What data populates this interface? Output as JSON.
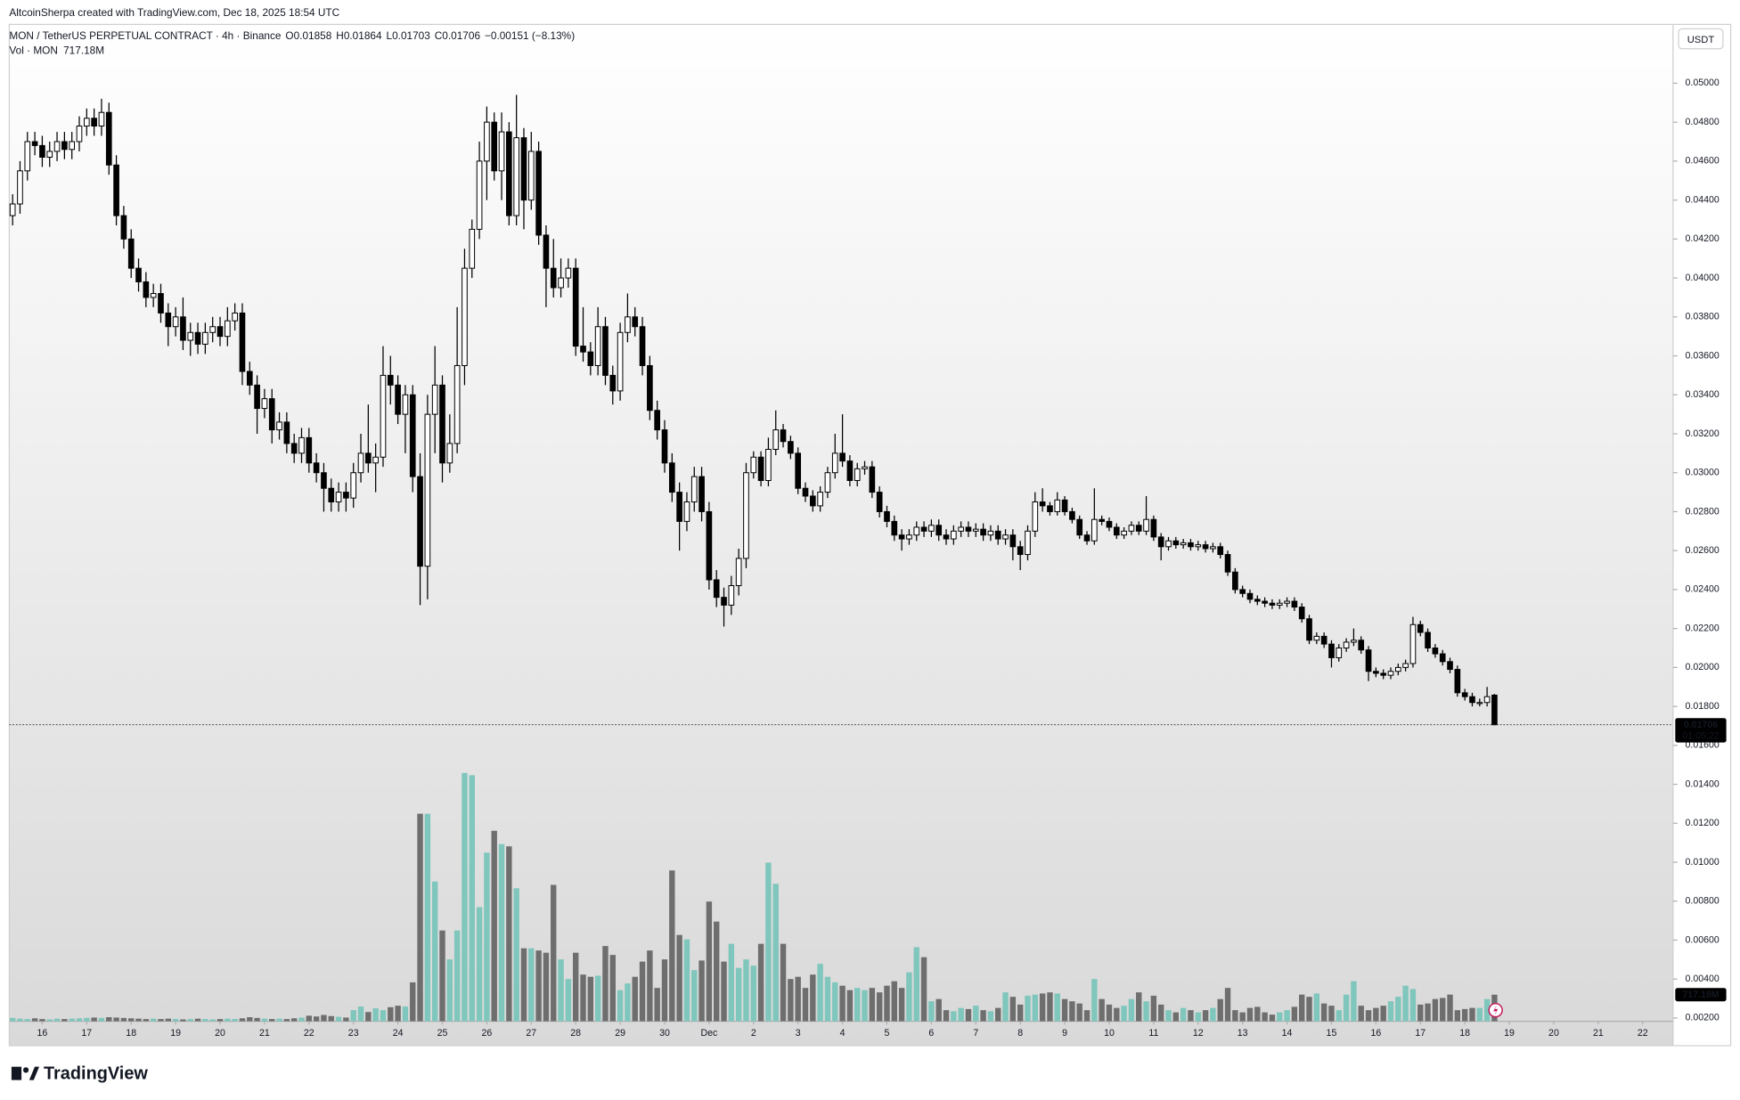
{
  "chart_data": {
    "type": "candlestick",
    "attribution": "AltcoinSherpa created with TradingView.com, Dec 18, 2025 18:54 UTC",
    "title": "MON / TetherUS PERPETUAL CONTRACT · 4h · Binance",
    "ohlc_letters": [
      "O",
      "H",
      "L",
      "C"
    ],
    "change": "−0.00151 (−8.13%)",
    "currency": "USDT",
    "countdown": "01:05:22",
    "logo": "TradingView",
    "up_color": "#ffffff",
    "down_color": "#000000",
    "open": [
      0.0432,
      0.0438,
      0.0455,
      0.047,
      0.0468,
      0.0462,
      0.0465,
      0.047,
      0.0466,
      0.047,
      0.0478,
      0.0482,
      0.0478,
      0.0485,
      0.0458,
      0.0432,
      0.042,
      0.0405,
      0.0398,
      0.039,
      0.0392,
      0.0382,
      0.0375,
      0.038,
      0.0368,
      0.0372,
      0.0366,
      0.0372,
      0.0375,
      0.037,
      0.0378,
      0.0382,
      0.0352,
      0.0345,
      0.0333,
      0.0338,
      0.0322,
      0.0326,
      0.0315,
      0.031,
      0.0318,
      0.0305,
      0.03,
      0.0292,
      0.0285,
      0.029,
      0.0287,
      0.03,
      0.031,
      0.0305,
      0.0308,
      0.035,
      0.0345,
      0.033,
      0.034,
      0.0298,
      0.0252,
      0.033,
      0.0345,
      0.0305,
      0.0315,
      0.0355,
      0.0405,
      0.0425,
      0.046,
      0.048,
      0.0455,
      0.0475,
      0.0432,
      0.0472,
      0.044,
      0.0465,
      0.0422,
      0.0405,
      0.0395,
      0.04,
      0.0405,
      0.0365,
      0.0362,
      0.0355,
      0.0375,
      0.035,
      0.0342,
      0.0372,
      0.038,
      0.0375,
      0.0355,
      0.0332,
      0.0322,
      0.0305,
      0.029,
      0.0275,
      0.0285,
      0.0298,
      0.028,
      0.0245,
      0.0236,
      0.0232,
      0.0242,
      0.0256,
      0.03,
      0.0308,
      0.0296,
      0.0312,
      0.0322,
      0.0316,
      0.031,
      0.0292,
      0.0288,
      0.0283,
      0.029,
      0.03,
      0.031,
      0.0306,
      0.0296,
      0.0302,
      0.0303,
      0.029,
      0.028,
      0.0275,
      0.0268,
      0.0266,
      0.0268,
      0.0272,
      0.027,
      0.0273,
      0.0268,
      0.0266,
      0.027,
      0.0272,
      0.027,
      0.0271,
      0.0268,
      0.027,
      0.0266,
      0.0268,
      0.0262,
      0.0258,
      0.027,
      0.0285,
      0.0283,
      0.028,
      0.0286,
      0.028,
      0.0276,
      0.0268,
      0.0265,
      0.0276,
      0.0275,
      0.0272,
      0.0268,
      0.027,
      0.0273,
      0.027,
      0.0276,
      0.0267,
      0.0262,
      0.0265,
      0.0263,
      0.0264,
      0.0262,
      0.0263,
      0.0261,
      0.0262,
      0.0258,
      0.0249,
      0.024,
      0.0238,
      0.0235,
      0.0234,
      0.0233,
      0.0232,
      0.0233,
      0.0234,
      0.0231,
      0.0225,
      0.0214,
      0.0216,
      0.0212,
      0.0205,
      0.021,
      0.0213,
      0.0214,
      0.0209,
      0.0198,
      0.0197,
      0.0196,
      0.0198,
      0.02,
      0.0202,
      0.0222,
      0.0218,
      0.021,
      0.0207,
      0.0203,
      0.0199,
      0.0187,
      0.0185,
      0.0182,
      0.0182,
      0.01858
    ],
    "high": [
      0.0443,
      0.046,
      0.0475,
      0.0475,
      0.0473,
      0.047,
      0.0475,
      0.0475,
      0.0475,
      0.0483,
      0.0487,
      0.0487,
      0.0492,
      0.049,
      0.0463,
      0.0437,
      0.0425,
      0.041,
      0.0403,
      0.0397,
      0.0397,
      0.0387,
      0.0385,
      0.039,
      0.0377,
      0.0377,
      0.0377,
      0.038,
      0.038,
      0.0385,
      0.0387,
      0.0387,
      0.0357,
      0.035,
      0.0343,
      0.0343,
      0.0331,
      0.0331,
      0.032,
      0.0323,
      0.0323,
      0.031,
      0.0305,
      0.0297,
      0.0295,
      0.0295,
      0.0305,
      0.032,
      0.0335,
      0.0315,
      0.0365,
      0.036,
      0.035,
      0.0345,
      0.0345,
      0.031,
      0.034,
      0.0365,
      0.035,
      0.033,
      0.0385,
      0.0415,
      0.043,
      0.047,
      0.0488,
      0.0485,
      0.0485,
      0.048,
      0.0494,
      0.0477,
      0.0475,
      0.047,
      0.0427,
      0.042,
      0.041,
      0.041,
      0.041,
      0.0385,
      0.0367,
      0.0385,
      0.038,
      0.0355,
      0.0377,
      0.0392,
      0.0385,
      0.038,
      0.036,
      0.0337,
      0.0327,
      0.031,
      0.0295,
      0.029,
      0.0303,
      0.0303,
      0.0285,
      0.025,
      0.0241,
      0.0247,
      0.0261,
      0.0305,
      0.0311,
      0.0311,
      0.0318,
      0.0332,
      0.0325,
      0.0319,
      0.0313,
      0.0295,
      0.0291,
      0.0293,
      0.0303,
      0.032,
      0.033,
      0.0309,
      0.0305,
      0.0306,
      0.0306,
      0.0293,
      0.0283,
      0.0278,
      0.0271,
      0.0271,
      0.0275,
      0.0275,
      0.0276,
      0.0276,
      0.0271,
      0.0273,
      0.0275,
      0.0275,
      0.0274,
      0.0274,
      0.0273,
      0.0273,
      0.0271,
      0.0271,
      0.0265,
      0.0273,
      0.029,
      0.0292,
      0.0285,
      0.029,
      0.0288,
      0.0282,
      0.0278,
      0.027,
      0.0292,
      0.0278,
      0.0277,
      0.0274,
      0.0272,
      0.0275,
      0.0275,
      0.0288,
      0.0278,
      0.0269,
      0.0267,
      0.0267,
      0.0266,
      0.0266,
      0.0265,
      0.0265,
      0.0264,
      0.0264,
      0.026,
      0.0251,
      0.0242,
      0.024,
      0.0237,
      0.0236,
      0.0235,
      0.0235,
      0.0236,
      0.0236,
      0.0233,
      0.0227,
      0.0218,
      0.0218,
      0.0214,
      0.0212,
      0.0215,
      0.022,
      0.0216,
      0.0211,
      0.02,
      0.0199,
      0.02,
      0.0202,
      0.0204,
      0.0226,
      0.0224,
      0.022,
      0.0212,
      0.0209,
      0.0205,
      0.0201,
      0.0189,
      0.0187,
      0.0184,
      0.019,
      0.01864
    ],
    "low": [
      0.0427,
      0.0433,
      0.045,
      0.0463,
      0.0457,
      0.0457,
      0.046,
      0.0461,
      0.0461,
      0.0465,
      0.0473,
      0.0473,
      0.0473,
      0.0453,
      0.0427,
      0.0415,
      0.04,
      0.0393,
      0.0385,
      0.0385,
      0.0377,
      0.0365,
      0.037,
      0.0363,
      0.036,
      0.0361,
      0.0361,
      0.0367,
      0.0365,
      0.0365,
      0.0373,
      0.0345,
      0.034,
      0.032,
      0.0328,
      0.0315,
      0.0317,
      0.031,
      0.0305,
      0.0305,
      0.03,
      0.0295,
      0.028,
      0.028,
      0.028,
      0.028,
      0.0282,
      0.0295,
      0.03,
      0.029,
      0.0303,
      0.0335,
      0.0325,
      0.031,
      0.029,
      0.0232,
      0.0235,
      0.031,
      0.0295,
      0.03,
      0.031,
      0.0345,
      0.04,
      0.042,
      0.044,
      0.045,
      0.044,
      0.0427,
      0.0427,
      0.0425,
      0.0435,
      0.0417,
      0.0385,
      0.039,
      0.039,
      0.0395,
      0.036,
      0.0357,
      0.035,
      0.035,
      0.0345,
      0.0335,
      0.0337,
      0.0367,
      0.037,
      0.035,
      0.0327,
      0.0317,
      0.03,
      0.0285,
      0.026,
      0.027,
      0.028,
      0.0275,
      0.024,
      0.0231,
      0.0221,
      0.0227,
      0.0237,
      0.0251,
      0.0297,
      0.0293,
      0.0293,
      0.0309,
      0.0313,
      0.0307,
      0.0289,
      0.0285,
      0.028,
      0.028,
      0.0287,
      0.0297,
      0.0303,
      0.0293,
      0.0293,
      0.0299,
      0.0287,
      0.0277,
      0.0272,
      0.0265,
      0.026,
      0.0263,
      0.0265,
      0.0267,
      0.0267,
      0.0265,
      0.0263,
      0.0263,
      0.0267,
      0.0267,
      0.0267,
      0.0265,
      0.0265,
      0.0263,
      0.0263,
      0.0255,
      0.025,
      0.0255,
      0.0267,
      0.028,
      0.0278,
      0.0278,
      0.0278,
      0.0274,
      0.0266,
      0.0263,
      0.0263,
      0.0273,
      0.027,
      0.0266,
      0.0266,
      0.0268,
      0.0268,
      0.0268,
      0.0265,
      0.0255,
      0.026,
      0.0261,
      0.0261,
      0.026,
      0.026,
      0.0259,
      0.0259,
      0.0256,
      0.0247,
      0.0238,
      0.0236,
      0.0233,
      0.0232,
      0.0231,
      0.023,
      0.023,
      0.0231,
      0.0229,
      0.0223,
      0.0212,
      0.0212,
      0.021,
      0.02,
      0.0203,
      0.0208,
      0.0211,
      0.0207,
      0.0193,
      0.0195,
      0.0194,
      0.0194,
      0.0196,
      0.0198,
      0.02,
      0.0216,
      0.0208,
      0.0205,
      0.0201,
      0.0197,
      0.0185,
      0.0183,
      0.018,
      0.018,
      0.018,
      0.01703
    ],
    "close": [
      0.0438,
      0.0455,
      0.047,
      0.0468,
      0.0462,
      0.0465,
      0.047,
      0.0466,
      0.047,
      0.0478,
      0.0482,
      0.0478,
      0.0485,
      0.0458,
      0.0432,
      0.042,
      0.0405,
      0.0398,
      0.039,
      0.0392,
      0.0382,
      0.0375,
      0.038,
      0.0368,
      0.0372,
      0.0366,
      0.0372,
      0.0375,
      0.037,
      0.0378,
      0.0382,
      0.0352,
      0.0345,
      0.0333,
      0.0338,
      0.0322,
      0.0326,
      0.0315,
      0.031,
      0.0318,
      0.0305,
      0.03,
      0.0292,
      0.0285,
      0.029,
      0.0287,
      0.03,
      0.031,
      0.0305,
      0.0308,
      0.035,
      0.0345,
      0.033,
      0.034,
      0.0298,
      0.0252,
      0.033,
      0.0345,
      0.0305,
      0.0315,
      0.0355,
      0.0405,
      0.0425,
      0.046,
      0.048,
      0.0455,
      0.0475,
      0.0432,
      0.0472,
      0.044,
      0.0465,
      0.0422,
      0.0405,
      0.0395,
      0.04,
      0.0405,
      0.0365,
      0.0362,
      0.0355,
      0.0375,
      0.035,
      0.0342,
      0.0372,
      0.038,
      0.0375,
      0.0355,
      0.0332,
      0.0322,
      0.0305,
      0.029,
      0.0275,
      0.0285,
      0.0298,
      0.028,
      0.0245,
      0.0236,
      0.0232,
      0.0242,
      0.0256,
      0.03,
      0.0308,
      0.0296,
      0.0312,
      0.0322,
      0.0316,
      0.031,
      0.0292,
      0.0288,
      0.0283,
      0.029,
      0.03,
      0.031,
      0.0306,
      0.0296,
      0.0302,
      0.0303,
      0.029,
      0.028,
      0.0275,
      0.0268,
      0.0266,
      0.0268,
      0.0272,
      0.027,
      0.0273,
      0.0268,
      0.0266,
      0.027,
      0.0272,
      0.027,
      0.0271,
      0.0268,
      0.027,
      0.0266,
      0.0268,
      0.0262,
      0.0258,
      0.027,
      0.0285,
      0.0283,
      0.028,
      0.0286,
      0.028,
      0.0276,
      0.0268,
      0.0265,
      0.0276,
      0.0275,
      0.0272,
      0.0268,
      0.027,
      0.0273,
      0.027,
      0.0276,
      0.0267,
      0.0262,
      0.0265,
      0.0263,
      0.0264,
      0.0262,
      0.0263,
      0.0261,
      0.0262,
      0.0258,
      0.0249,
      0.024,
      0.0238,
      0.0235,
      0.0234,
      0.0233,
      0.0232,
      0.0233,
      0.0234,
      0.0231,
      0.0225,
      0.0214,
      0.0216,
      0.0212,
      0.0205,
      0.021,
      0.0213,
      0.0214,
      0.0209,
      0.0198,
      0.0197,
      0.0196,
      0.0198,
      0.02,
      0.0202,
      0.0222,
      0.0218,
      0.021,
      0.0207,
      0.0203,
      0.0199,
      0.0187,
      0.0185,
      0.0182,
      0.0182,
      0.0185,
      0.01706
    ],
    "volume": {
      "name": "Vol · MON",
      "up_color": "#7fc6bc",
      "down_color": "#6e6e6e",
      "last_label": "717.18M",
      "values": [
        90,
        70,
        60,
        80,
        60,
        50,
        70,
        60,
        70,
        80,
        90,
        100,
        90,
        110,
        100,
        90,
        80,
        70,
        60,
        70,
        60,
        70,
        60,
        50,
        60,
        70,
        60,
        50,
        60,
        70,
        60,
        80,
        110,
        90,
        70,
        60,
        70,
        60,
        80,
        100,
        150,
        130,
        170,
        140,
        120,
        100,
        300,
        400,
        250,
        350,
        300,
        380,
        420,
        400,
        1050,
        5600,
        5600,
        3770,
        2450,
        1670,
        2450,
        6700,
        6640,
        3080,
        4550,
        5140,
        4780,
        4720,
        3590,
        1970,
        1970,
        1910,
        1850,
        3680,
        1670,
        1140,
        1850,
        1260,
        1200,
        1230,
        2030,
        1790,
        840,
        1020,
        1200,
        1610,
        1910,
        900,
        1670,
        4070,
        2330,
        2210,
        1380,
        1640,
        3230,
        2690,
        1610,
        2090,
        1440,
        1670,
        1500,
        2090,
        4280,
        3710,
        2090,
        1140,
        1200,
        900,
        1260,
        1550,
        1200,
        1050,
        960,
        840,
        900,
        840,
        900,
        780,
        960,
        1080,
        900,
        1320,
        2000,
        1730,
        540,
        600,
        300,
        270,
        360,
        330,
        420,
        300,
        270,
        360,
        780,
        660,
        450,
        690,
        720,
        750,
        780,
        750,
        600,
        540,
        480,
        300,
        1140,
        600,
        450,
        360,
        420,
        600,
        780,
        540,
        690,
        450,
        300,
        240,
        360,
        300,
        240,
        300,
        360,
        600,
        900,
        300,
        240,
        360,
        390,
        240,
        180,
        240,
        300,
        390,
        720,
        660,
        750,
        480,
        420,
        300,
        720,
        1080,
        420,
        300,
        360,
        420,
        540,
        660,
        960,
        870,
        450,
        480,
        600,
        630,
        720,
        300,
        330,
        360,
        360,
        600,
        717.18
      ]
    },
    "volume_ylim": [
      0,
      26900
    ],
    "xlim": [
      -0.45,
      224.1
    ],
    "xticks": [
      {
        "value": 4,
        "label": "16"
      },
      {
        "value": 10,
        "label": "17"
      },
      {
        "value": 16,
        "label": "18"
      },
      {
        "value": 22,
        "label": "19"
      },
      {
        "value": 28,
        "label": "20"
      },
      {
        "value": 34,
        "label": "21"
      },
      {
        "value": 40,
        "label": "22"
      },
      {
        "value": 46,
        "label": "23"
      },
      {
        "value": 52,
        "label": "24"
      },
      {
        "value": 58,
        "label": "25"
      },
      {
        "value": 64,
        "label": "26"
      },
      {
        "value": 70,
        "label": "27"
      },
      {
        "value": 76,
        "label": "28"
      },
      {
        "value": 82,
        "label": "29"
      },
      {
        "value": 88,
        "label": "30"
      },
      {
        "value": 94,
        "label": "Dec"
      },
      {
        "value": 100,
        "label": "2"
      },
      {
        "value": 106,
        "label": "3"
      },
      {
        "value": 112,
        "label": "4"
      },
      {
        "value": 118,
        "label": "5"
      },
      {
        "value": 124,
        "label": "6"
      },
      {
        "value": 130,
        "label": "7"
      },
      {
        "value": 136,
        "label": "8"
      },
      {
        "value": 142,
        "label": "9"
      },
      {
        "value": 148,
        "label": "10"
      },
      {
        "value": 154,
        "label": "11"
      },
      {
        "value": 160,
        "label": "12"
      },
      {
        "value": 166,
        "label": "13"
      },
      {
        "value": 172,
        "label": "14"
      },
      {
        "value": 178,
        "label": "15"
      },
      {
        "value": 184,
        "label": "16"
      },
      {
        "value": 190,
        "label": "17"
      },
      {
        "value": 196,
        "label": "18"
      },
      {
        "value": 202,
        "label": "19"
      },
      {
        "value": 208,
        "label": "20"
      },
      {
        "value": 214,
        "label": "21"
      },
      {
        "value": 220,
        "label": "22"
      }
    ],
    "ylim": [
      0.00058,
      0.05302
    ],
    "yticks": [
      {
        "value": 0.002,
        "label": "0.00200"
      },
      {
        "value": 0.004,
        "label": "0.00400"
      },
      {
        "value": 0.006,
        "label": "0.00600"
      },
      {
        "value": 0.008,
        "label": "0.00800"
      },
      {
        "value": 0.01,
        "label": "0.01000"
      },
      {
        "value": 0.012,
        "label": "0.01200"
      },
      {
        "value": 0.014,
        "label": "0.01400"
      },
      {
        "value": 0.016,
        "label": "0.01600"
      },
      {
        "value": 0.018,
        "label": "0.01800"
      },
      {
        "value": 0.02,
        "label": "0.02000"
      },
      {
        "value": 0.022,
        "label": "0.02200"
      },
      {
        "value": 0.024,
        "label": "0.02400"
      },
      {
        "value": 0.026,
        "label": "0.02600"
      },
      {
        "value": 0.028,
        "label": "0.02800"
      },
      {
        "value": 0.03,
        "label": "0.03000"
      },
      {
        "value": 0.032,
        "label": "0.03200"
      },
      {
        "value": 0.034,
        "label": "0.03400"
      },
      {
        "value": 0.036,
        "label": "0.03600"
      },
      {
        "value": 0.038,
        "label": "0.03800"
      },
      {
        "value": 0.04,
        "label": "0.04000"
      },
      {
        "value": 0.042,
        "label": "0.04200"
      },
      {
        "value": 0.044,
        "label": "0.04400"
      },
      {
        "value": 0.046,
        "label": "0.04600"
      },
      {
        "value": 0.048,
        "label": "0.04800"
      },
      {
        "value": 0.05,
        "label": "0.05000"
      }
    ],
    "grid": false
  }
}
